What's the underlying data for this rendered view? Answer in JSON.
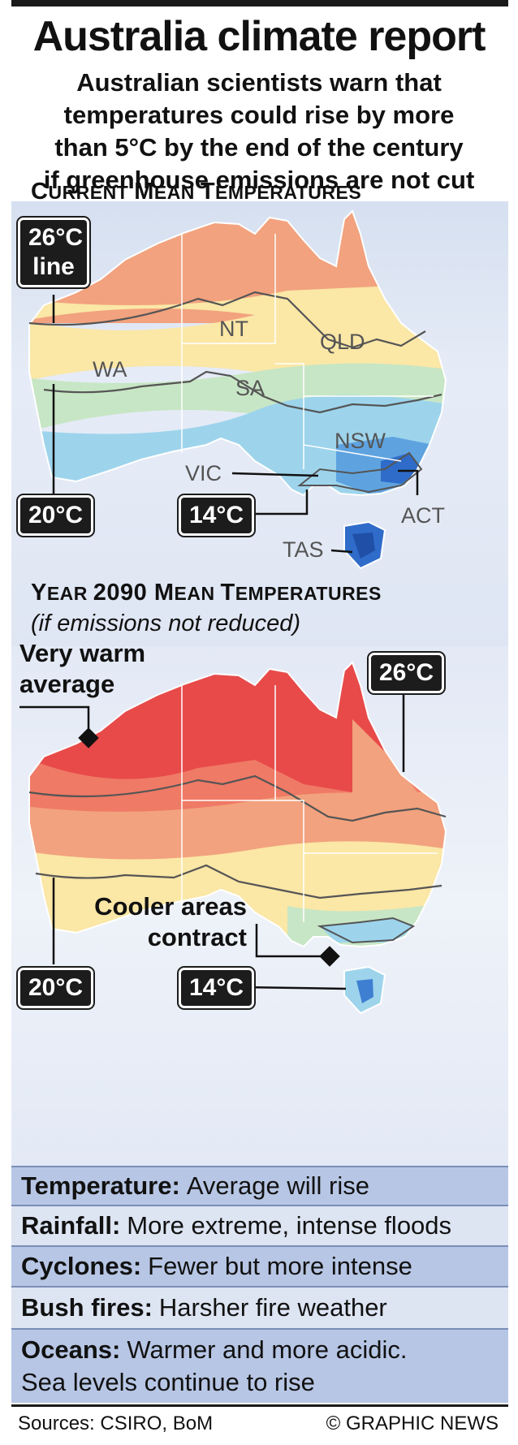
{
  "title": "Australia climate report",
  "subtitle_lines": [
    "Australian scientists warn that",
    "temperatures could rise by more",
    "than 5°C by the end of the century",
    "if greenhouse emissions are not cut"
  ],
  "current": {
    "heading_big": "C",
    "heading_small": "URRENT ",
    "heading_big2": "M",
    "heading_small2": "EAN ",
    "heading_big3": "T",
    "heading_small3": "EMPERATURES",
    "tag_26_line1": "26°C",
    "tag_26_line2": "line",
    "tag_20": "20°C",
    "tag_14": "14°C",
    "states": {
      "wa": "WA",
      "nt": "NT",
      "qld": "QLD",
      "sa": "SA",
      "nsw": "NSW",
      "vic": "VIC",
      "act": "ACT",
      "tas": "TAS"
    }
  },
  "future": {
    "heading_year": "Y",
    "heading_year_small": "EAR ",
    "heading_num": "2090 ",
    "heading_big2": "M",
    "heading_small2": "EAN ",
    "heading_big3": "T",
    "heading_small3": "EMPERATURES",
    "subheading": "(if emissions not reduced)",
    "very_warm_line1": "Very warm",
    "very_warm_line2": "average",
    "tag_26": "26°C",
    "tag_20": "20°C",
    "tag_14": "14°C",
    "cooler_line1": "Cooler areas",
    "cooler_line2": "contract"
  },
  "facts": [
    {
      "key": "Temperature:",
      "value": "Average will rise"
    },
    {
      "key": "Rainfall:",
      "value": "More extreme, intense floods"
    },
    {
      "key": "Cyclones:",
      "value": "Fewer but more intense"
    },
    {
      "key": "Bush fires:",
      "value": "Harsher fire weather"
    },
    {
      "key": "Oceans:",
      "value": "Warmer and more acidic.",
      "value2": "Sea levels continue to rise"
    }
  ],
  "footer": {
    "sources": "Sources: CSIRO, BoM",
    "credit": "© GRAPHIC NEWS"
  },
  "colors": {
    "hot": "#e84a4a",
    "warm": "#f2a27e",
    "mild": "#fbe7a6",
    "cool": "#c7e6c5",
    "cold": "#9dd4ec",
    "coldest": "#2f6cc9"
  }
}
